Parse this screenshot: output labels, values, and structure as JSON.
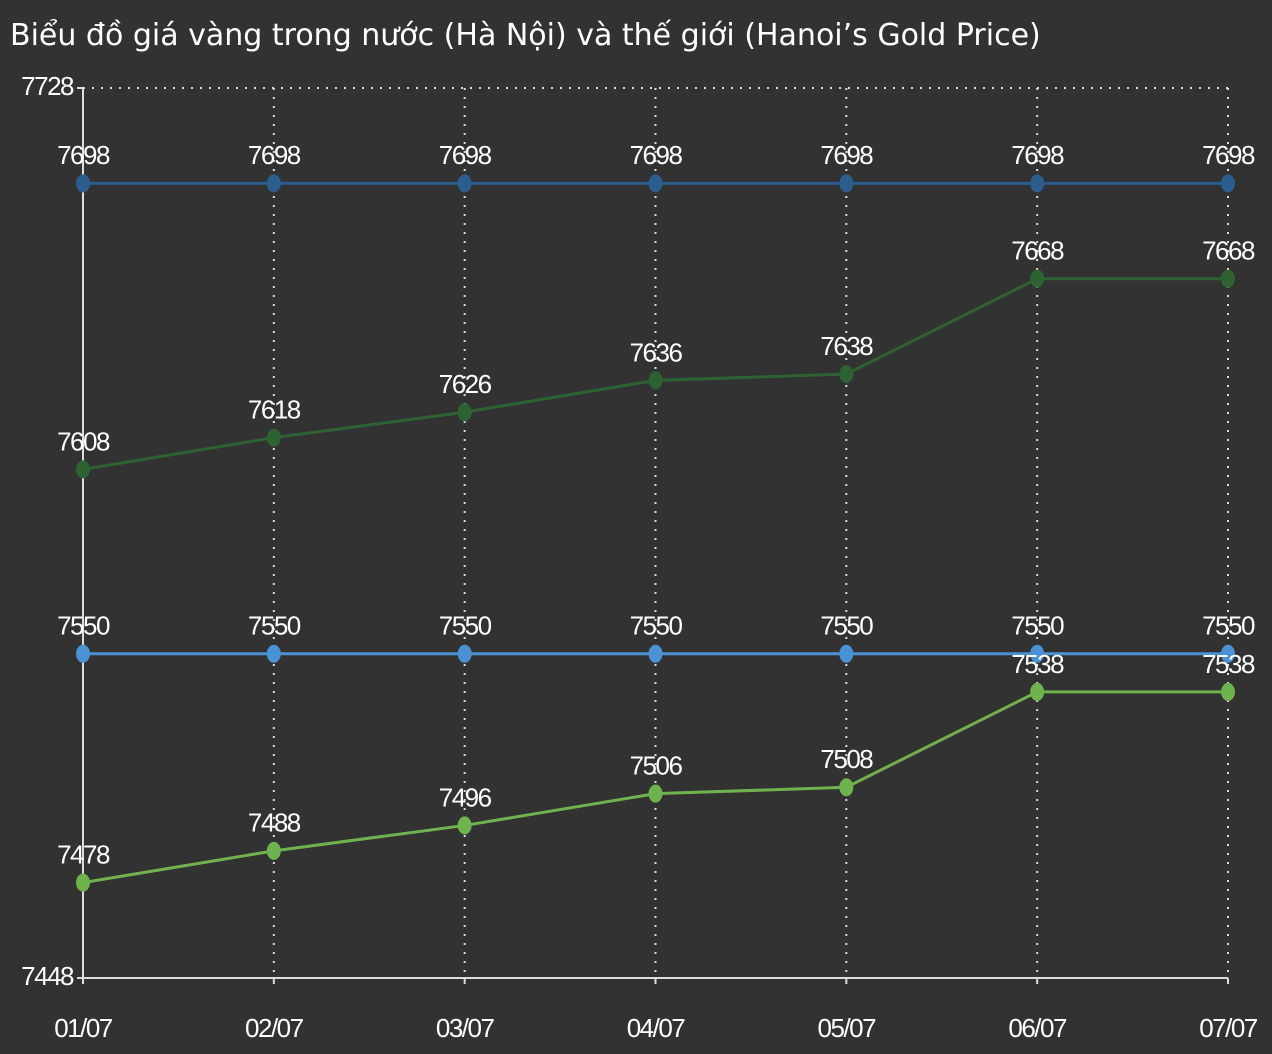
{
  "chart_data": {
    "type": "line",
    "title": "Biểu đồ giá vàng trong nước (Hà Nội) và thế giới (Hanoi’s Gold Price)",
    "categories": [
      "01/07",
      "02/07",
      "03/07",
      "04/07",
      "05/07",
      "06/07",
      "07/07"
    ],
    "series": [
      {
        "color": "#2b5d8e",
        "values": [
          7698,
          7698,
          7698,
          7698,
          7698,
          7698,
          7698
        ]
      },
      {
        "color": "#2d6233",
        "values": [
          7608,
          7618,
          7626,
          7636,
          7638,
          7668,
          7668
        ]
      },
      {
        "color": "#4a92d4",
        "values": [
          7550,
          7550,
          7550,
          7550,
          7550,
          7550,
          7550
        ]
      },
      {
        "color": "#6fb34f",
        "values": [
          7478,
          7488,
          7496,
          7506,
          7508,
          7538,
          7538
        ]
      }
    ],
    "ylim": [
      7448,
      7728
    ],
    "yticks": [
      7448,
      7728
    ],
    "grid": true
  }
}
